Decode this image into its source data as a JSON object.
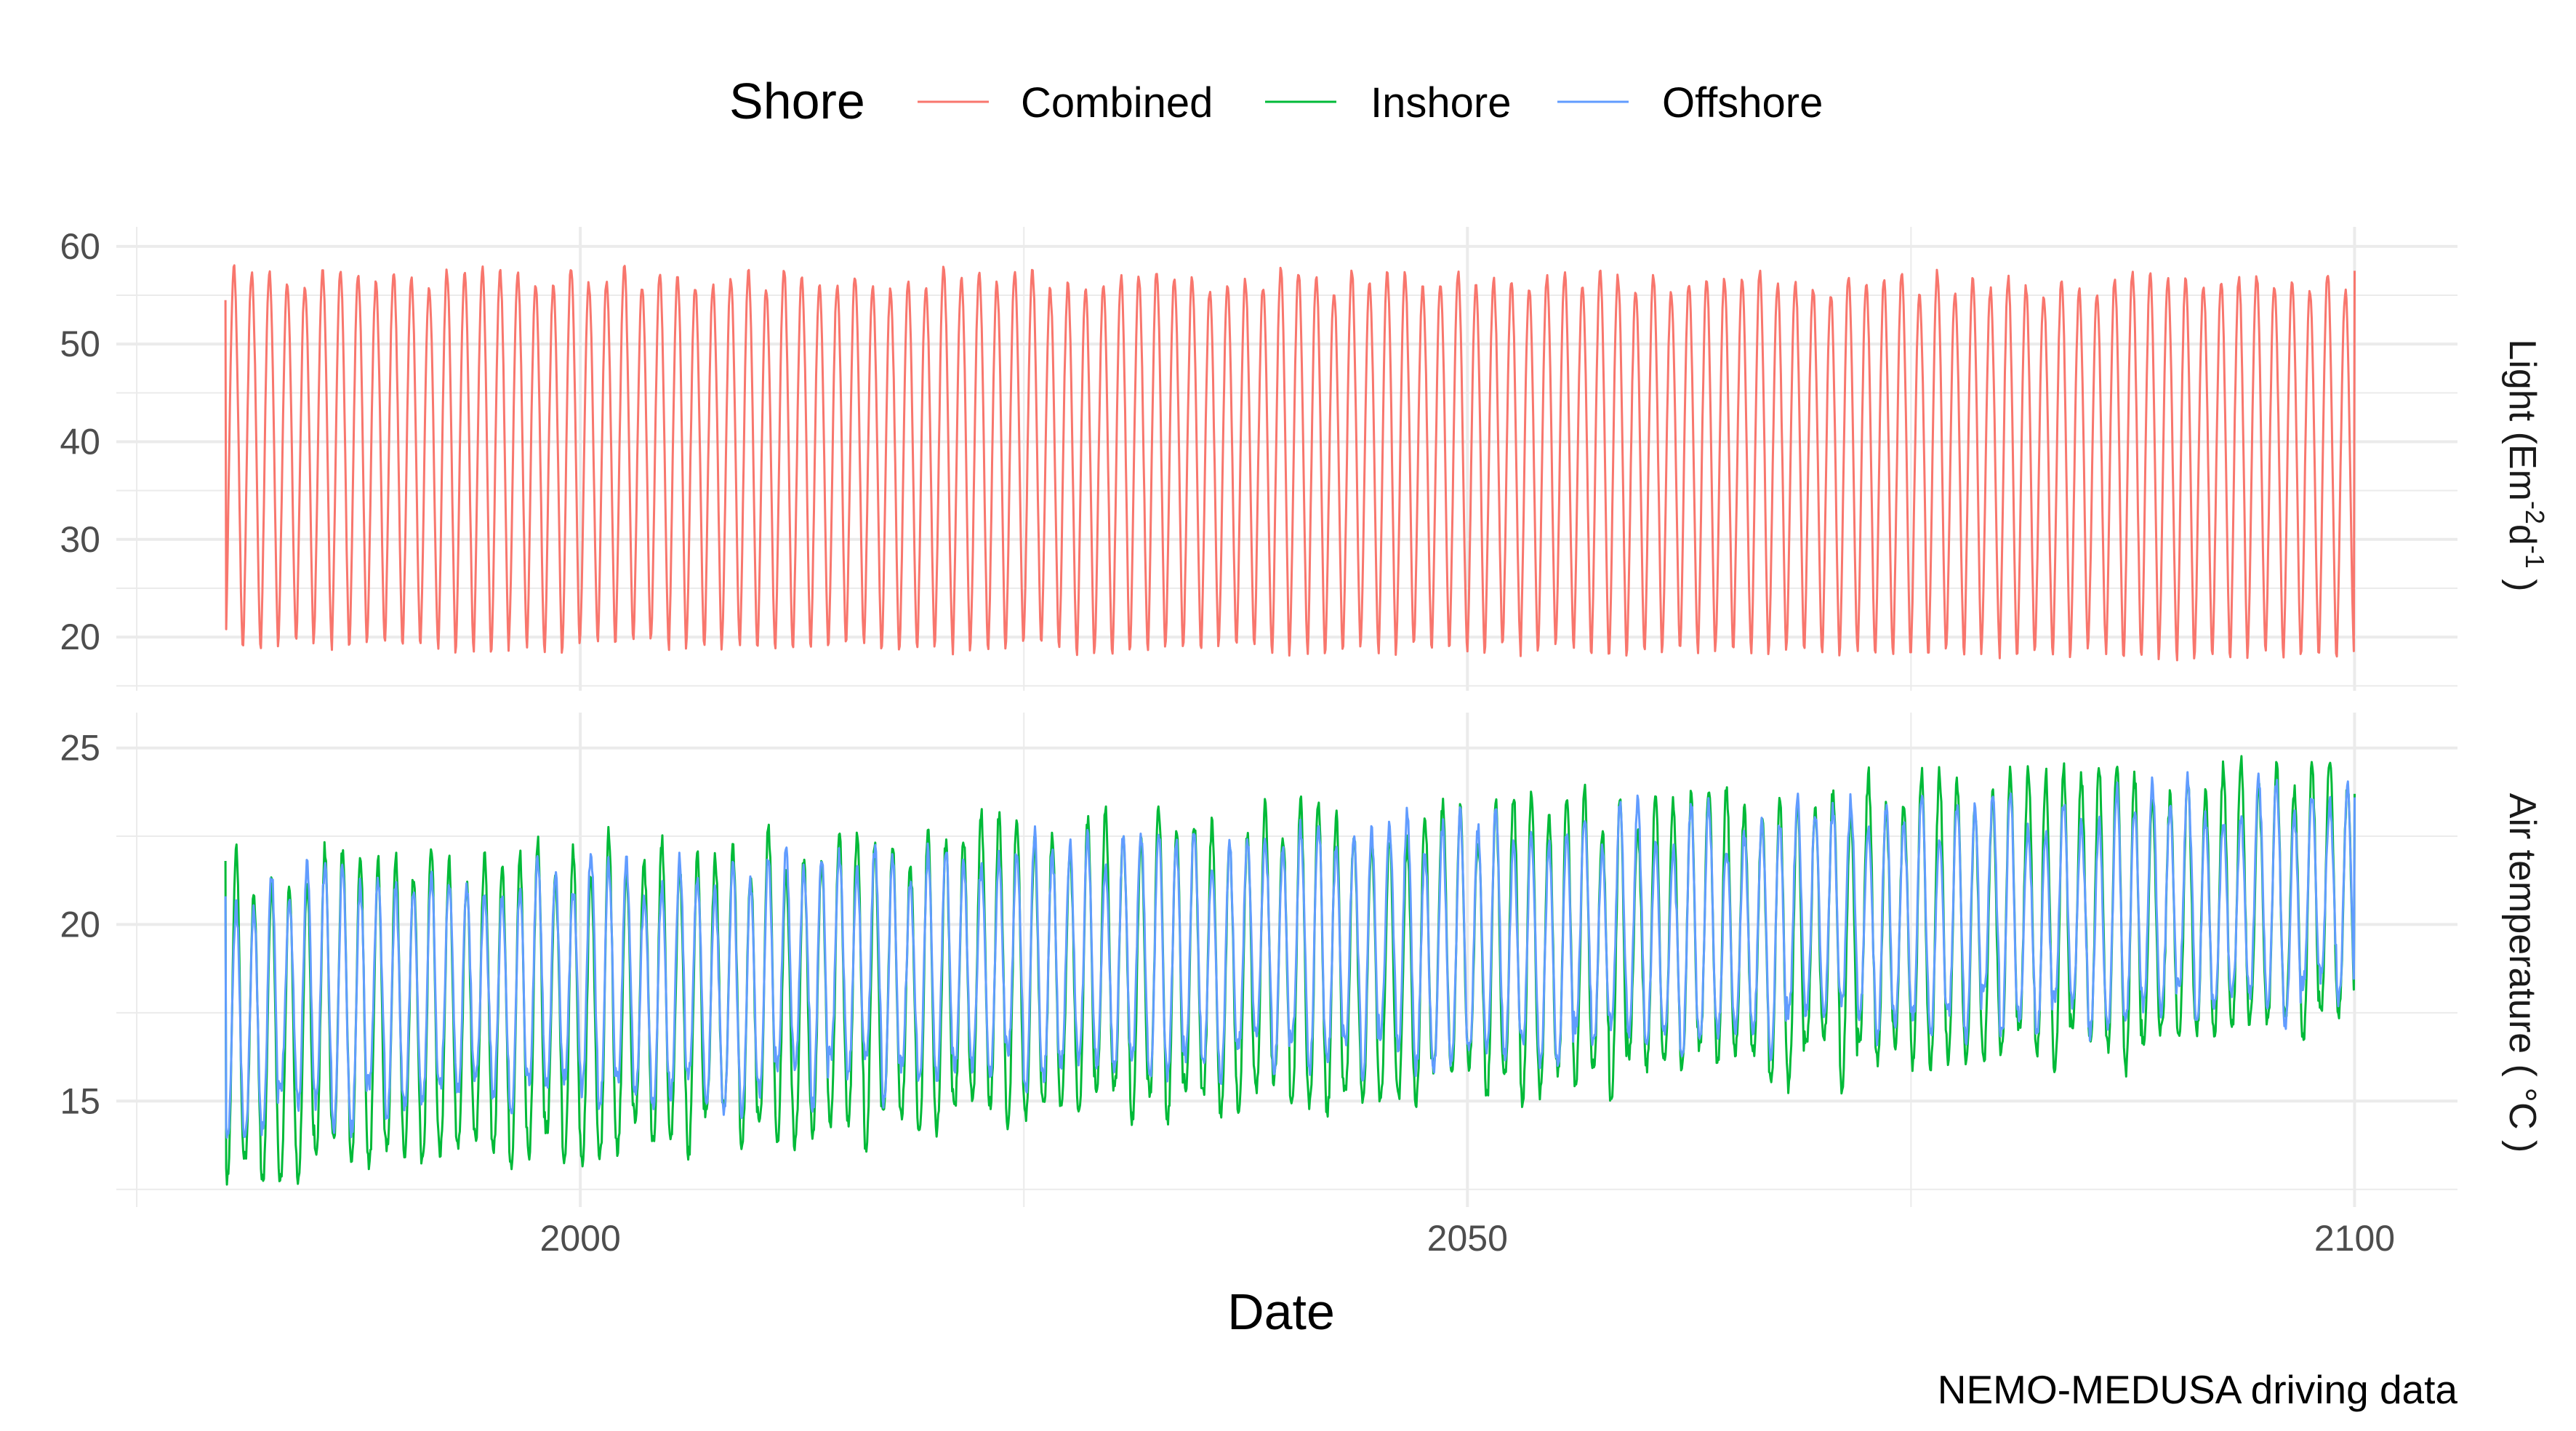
{
  "chart_data": {
    "type": "line",
    "xlabel": "Date",
    "caption": "NEMO-MEDUSA driving data",
    "legend": {
      "title": "Shore",
      "position": "top",
      "entries": [
        {
          "name": "Combined",
          "color": "#F8766D"
        },
        {
          "name": "Inshore",
          "color": "#00BA38"
        },
        {
          "name": "Offshore",
          "color": "#619CFF"
        }
      ]
    },
    "x_range": [
      1980,
      2100
    ],
    "x_ticks": [
      "2000",
      "2050",
      "2100"
    ],
    "x_tick_values": [
      2000,
      2050,
      2100
    ],
    "x_minor_values": [
      1975,
      2025,
      2075
    ],
    "panels": [
      {
        "strip_label": "Light (Em",
        "strip_sup1": "-2",
        "strip_mid": "d",
        "strip_sup2": "-1",
        "strip_end": " )",
        "ylim": [
          14.5,
          62
        ],
        "y_ticks": [
          20,
          30,
          40,
          50,
          60
        ],
        "y_tick_labels": [
          "20",
          "30",
          "40",
          "50",
          "60"
        ],
        "series": [
          {
            "name": "Combined",
            "color": "#F8766D",
            "periodic": true,
            "period_years": 1,
            "min_start": 19,
            "min_end": 18,
            "max_start": 57,
            "max_end": 56,
            "peak_position": 0.48,
            "start_value": 54.5,
            "end_value": 57.5
          }
        ]
      },
      {
        "strip_label": "Air temperature ( °C )",
        "ylim": [
          12,
          26
        ],
        "y_ticks": [
          15,
          20,
          25
        ],
        "y_tick_labels": [
          "15",
          "20",
          "25"
        ],
        "series": [
          {
            "name": "Inshore",
            "color": "#00BA38",
            "periodic": true,
            "period_years": 1,
            "min_start": 13.3,
            "min_end": 17.0,
            "max_start": 21.5,
            "max_end": 24.3,
            "peak_position": 0.6,
            "start_value": 21.8,
            "end_value": 23.7
          },
          {
            "name": "Offshore",
            "color": "#619CFF",
            "periodic": true,
            "period_years": 1,
            "min_start": 14.6,
            "min_end": 17.9,
            "max_start": 20.9,
            "max_end": 23.7,
            "peak_position": 0.6,
            "start_value": 20.8,
            "end_value": 23.6
          }
        ]
      }
    ]
  }
}
